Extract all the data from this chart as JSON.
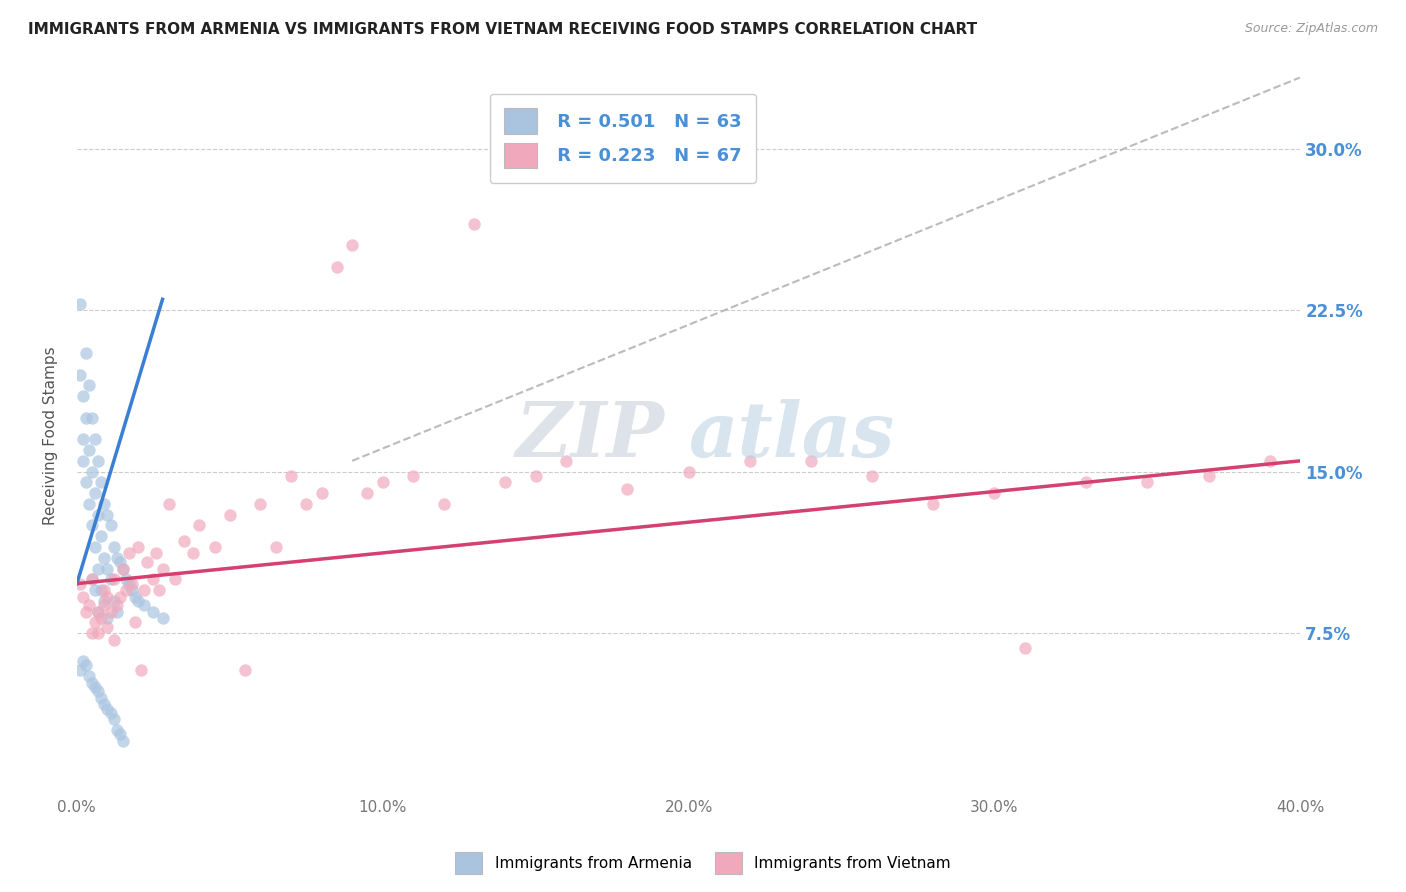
{
  "title": "IMMIGRANTS FROM ARMENIA VS IMMIGRANTS FROM VIETNAM RECEIVING FOOD STAMPS CORRELATION CHART",
  "source_text": "Source: ZipAtlas.com",
  "ylabel": "Receiving Food Stamps",
  "xlim": [
    0.0,
    0.4
  ],
  "ylim": [
    0.0,
    0.333
  ],
  "xtick_labels": [
    "0.0%",
    "",
    "10.0%",
    "",
    "20.0%",
    "",
    "30.0%",
    "",
    "40.0%"
  ],
  "xtick_vals": [
    0.0,
    0.05,
    0.1,
    0.15,
    0.2,
    0.25,
    0.3,
    0.35,
    0.4
  ],
  "ytick_labels": [
    "7.5%",
    "15.0%",
    "22.5%",
    "30.0%"
  ],
  "ytick_vals": [
    0.075,
    0.15,
    0.225,
    0.3
  ],
  "armenia_color": "#aac4e0",
  "vietnam_color": "#f0a8bc",
  "armenia_line_color": "#3a7fd4",
  "vietnam_line_color": "#d44070",
  "trend_line_color": "#bbbbbb",
  "R_armenia": 0.501,
  "N_armenia": 63,
  "R_vietnam": 0.223,
  "N_vietnam": 67,
  "legend_label_armenia": "Immigrants from Armenia",
  "legend_label_vietnam": "Immigrants from Vietnam",
  "armenia_scatter": [
    [
      0.001,
      0.228
    ],
    [
      0.001,
      0.195
    ],
    [
      0.002,
      0.185
    ],
    [
      0.002,
      0.165
    ],
    [
      0.002,
      0.155
    ],
    [
      0.003,
      0.205
    ],
    [
      0.003,
      0.175
    ],
    [
      0.003,
      0.145
    ],
    [
      0.004,
      0.19
    ],
    [
      0.004,
      0.16
    ],
    [
      0.004,
      0.135
    ],
    [
      0.005,
      0.175
    ],
    [
      0.005,
      0.15
    ],
    [
      0.005,
      0.125
    ],
    [
      0.005,
      0.1
    ],
    [
      0.006,
      0.165
    ],
    [
      0.006,
      0.14
    ],
    [
      0.006,
      0.115
    ],
    [
      0.006,
      0.095
    ],
    [
      0.007,
      0.155
    ],
    [
      0.007,
      0.13
    ],
    [
      0.007,
      0.105
    ],
    [
      0.007,
      0.085
    ],
    [
      0.008,
      0.145
    ],
    [
      0.008,
      0.12
    ],
    [
      0.008,
      0.095
    ],
    [
      0.009,
      0.135
    ],
    [
      0.009,
      0.11
    ],
    [
      0.009,
      0.09
    ],
    [
      0.01,
      0.13
    ],
    [
      0.01,
      0.105
    ],
    [
      0.01,
      0.082
    ],
    [
      0.011,
      0.125
    ],
    [
      0.011,
      0.1
    ],
    [
      0.012,
      0.115
    ],
    [
      0.012,
      0.09
    ],
    [
      0.013,
      0.11
    ],
    [
      0.013,
      0.085
    ],
    [
      0.014,
      0.108
    ],
    [
      0.015,
      0.105
    ],
    [
      0.016,
      0.1
    ],
    [
      0.017,
      0.098
    ],
    [
      0.018,
      0.095
    ],
    [
      0.019,
      0.092
    ],
    [
      0.02,
      0.09
    ],
    [
      0.022,
      0.088
    ],
    [
      0.025,
      0.085
    ],
    [
      0.028,
      0.082
    ],
    [
      0.001,
      0.058
    ],
    [
      0.002,
      0.062
    ],
    [
      0.003,
      0.06
    ],
    [
      0.004,
      0.055
    ],
    [
      0.005,
      0.052
    ],
    [
      0.006,
      0.05
    ],
    [
      0.007,
      0.048
    ],
    [
      0.008,
      0.045
    ],
    [
      0.009,
      0.042
    ],
    [
      0.01,
      0.04
    ],
    [
      0.011,
      0.038
    ],
    [
      0.012,
      0.035
    ],
    [
      0.013,
      0.03
    ],
    [
      0.014,
      0.028
    ],
    [
      0.015,
      0.025
    ]
  ],
  "vietnam_scatter": [
    [
      0.001,
      0.098
    ],
    [
      0.002,
      0.092
    ],
    [
      0.003,
      0.085
    ],
    [
      0.004,
      0.088
    ],
    [
      0.005,
      0.075
    ],
    [
      0.005,
      0.1
    ],
    [
      0.006,
      0.08
    ],
    [
      0.007,
      0.075
    ],
    [
      0.007,
      0.085
    ],
    [
      0.008,
      0.082
    ],
    [
      0.009,
      0.095
    ],
    [
      0.009,
      0.088
    ],
    [
      0.01,
      0.078
    ],
    [
      0.01,
      0.092
    ],
    [
      0.011,
      0.085
    ],
    [
      0.012,
      0.1
    ],
    [
      0.012,
      0.072
    ],
    [
      0.013,
      0.088
    ],
    [
      0.014,
      0.092
    ],
    [
      0.015,
      0.105
    ],
    [
      0.016,
      0.095
    ],
    [
      0.017,
      0.112
    ],
    [
      0.018,
      0.098
    ],
    [
      0.019,
      0.08
    ],
    [
      0.02,
      0.115
    ],
    [
      0.021,
      0.058
    ],
    [
      0.022,
      0.095
    ],
    [
      0.023,
      0.108
    ],
    [
      0.025,
      0.1
    ],
    [
      0.026,
      0.112
    ],
    [
      0.027,
      0.095
    ],
    [
      0.028,
      0.105
    ],
    [
      0.03,
      0.135
    ],
    [
      0.032,
      0.1
    ],
    [
      0.035,
      0.118
    ],
    [
      0.038,
      0.112
    ],
    [
      0.04,
      0.125
    ],
    [
      0.045,
      0.115
    ],
    [
      0.05,
      0.13
    ],
    [
      0.055,
      0.058
    ],
    [
      0.06,
      0.135
    ],
    [
      0.065,
      0.115
    ],
    [
      0.07,
      0.148
    ],
    [
      0.075,
      0.135
    ],
    [
      0.08,
      0.14
    ],
    [
      0.085,
      0.245
    ],
    [
      0.09,
      0.255
    ],
    [
      0.095,
      0.14
    ],
    [
      0.1,
      0.145
    ],
    [
      0.11,
      0.148
    ],
    [
      0.12,
      0.135
    ],
    [
      0.13,
      0.265
    ],
    [
      0.14,
      0.145
    ],
    [
      0.15,
      0.148
    ],
    [
      0.16,
      0.155
    ],
    [
      0.18,
      0.142
    ],
    [
      0.2,
      0.15
    ],
    [
      0.22,
      0.155
    ],
    [
      0.24,
      0.155
    ],
    [
      0.26,
      0.148
    ],
    [
      0.28,
      0.135
    ],
    [
      0.3,
      0.14
    ],
    [
      0.31,
      0.068
    ],
    [
      0.33,
      0.145
    ],
    [
      0.35,
      0.145
    ],
    [
      0.37,
      0.148
    ],
    [
      0.39,
      0.155
    ]
  ],
  "armenia_line": [
    [
      0.0,
      0.098
    ],
    [
      0.028,
      0.23
    ]
  ],
  "vietnam_line": [
    [
      0.0,
      0.098
    ],
    [
      0.4,
      0.155
    ]
  ],
  "dashed_line": [
    [
      0.09,
      0.155
    ],
    [
      0.4,
      0.333
    ]
  ],
  "background_color": "#ffffff",
  "grid_color": "#cccccc",
  "title_color": "#222222",
  "axis_label_color": "#555555",
  "tick_label_color_right": "#4a90d9",
  "legend_R_color": "#4a90d9"
}
